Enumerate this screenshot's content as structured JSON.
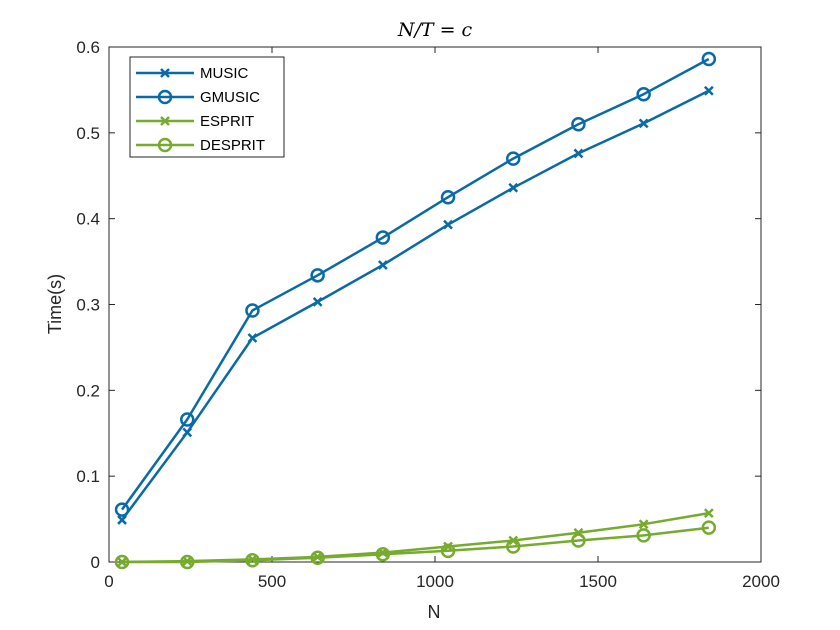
{
  "chart_data": {
    "type": "line",
    "title": "N/T = c",
    "xlabel": "N",
    "ylabel": "Time(s)",
    "xlim": [
      0,
      2000
    ],
    "ylim": [
      0,
      0.6
    ],
    "xticks": [
      0,
      500,
      1000,
      1500,
      2000
    ],
    "xtick_labels": [
      "0",
      "500",
      "1000",
      "1500",
      "2000"
    ],
    "yticks": [
      0,
      0.1,
      0.2,
      0.3,
      0.4,
      0.5,
      0.6
    ],
    "ytick_labels": [
      "0",
      "0.1",
      "0.2",
      "0.3",
      "0.4",
      "0.5",
      "0.6"
    ],
    "grid": false,
    "legend_position": "top-left",
    "x": [
      40,
      240,
      440,
      640,
      840,
      1040,
      1240,
      1440,
      1640,
      1840
    ],
    "series": [
      {
        "name": "MUSIC",
        "color": "#0a6aa8",
        "marker": "x",
        "values": [
          0.049,
          0.151,
          0.261,
          0.303,
          0.346,
          0.393,
          0.436,
          0.476,
          0.511,
          0.549
        ]
      },
      {
        "name": "GMUSIC",
        "color": "#0a6aa8",
        "marker": "o",
        "values": [
          0.061,
          0.166,
          0.293,
          0.334,
          0.378,
          0.425,
          0.47,
          0.51,
          0.545,
          0.586
        ]
      },
      {
        "name": "ESPRIT",
        "color": "#76ab2f",
        "marker": "x",
        "values": [
          0.0,
          0.001,
          0.003,
          0.006,
          0.011,
          0.018,
          0.025,
          0.034,
          0.044,
          0.057
        ]
      },
      {
        "name": "DESPRIT",
        "color": "#76ab2f",
        "marker": "o",
        "values": [
          0.0,
          0.0,
          0.002,
          0.005,
          0.009,
          0.013,
          0.018,
          0.025,
          0.031,
          0.04
        ]
      }
    ]
  }
}
